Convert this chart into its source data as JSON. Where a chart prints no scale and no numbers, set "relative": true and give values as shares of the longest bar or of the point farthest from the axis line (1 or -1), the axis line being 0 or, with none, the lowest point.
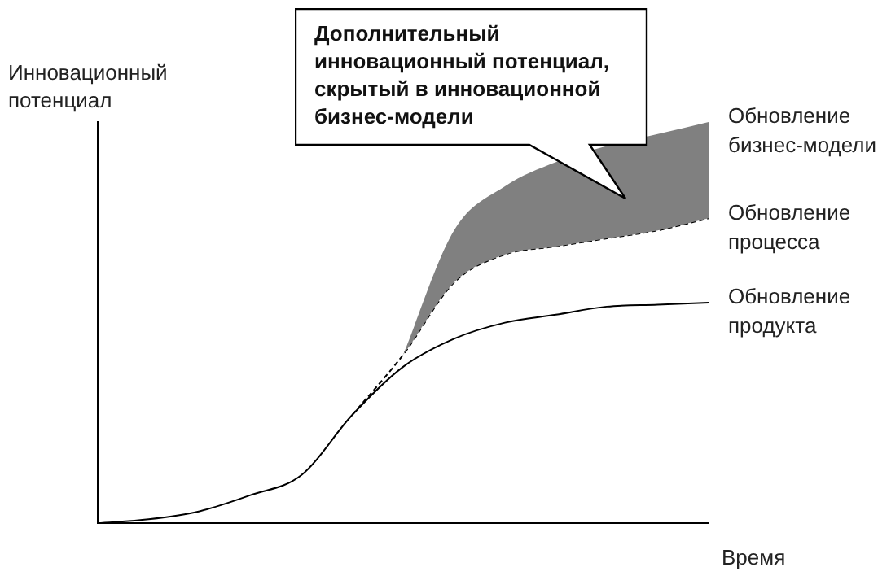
{
  "chart_data": {
    "type": "line",
    "relative": true,
    "ylabel": "Инновационный потенциал",
    "xlabel": "Время",
    "categories": [
      null,
      null,
      null,
      null,
      null,
      null,
      null,
      null,
      null,
      null,
      null,
      null,
      null
    ],
    "series": [
      {
        "name": "Обновление бизнес-модели",
        "type": "area",
        "color": "#808080",
        "values": [
          null,
          null,
          null,
          null,
          null,
          null,
          0.42,
          0.73,
          0.84,
          0.9,
          0.94,
          0.97,
          1.0
        ]
      },
      {
        "name": "Обновление процесса",
        "color": "#000000",
        "line_style": "dashed",
        "values": [
          null,
          null,
          null,
          null,
          null,
          0.27,
          0.42,
          0.6,
          0.67,
          0.69,
          0.71,
          0.73,
          0.76
        ]
      },
      {
        "name": "Обновление продукта",
        "color": "#000000",
        "line_style": "solid",
        "values": [
          0,
          0.01,
          0.03,
          0.07,
          0.12,
          0.27,
          0.39,
          0.46,
          0.5,
          0.52,
          0.54,
          0.545,
          0.55
        ]
      }
    ],
    "annotations": [
      "Дополнительный инновационный потенциал, скрытый в инновационной бизнес-модели"
    ],
    "grid": false,
    "legend": false
  }
}
